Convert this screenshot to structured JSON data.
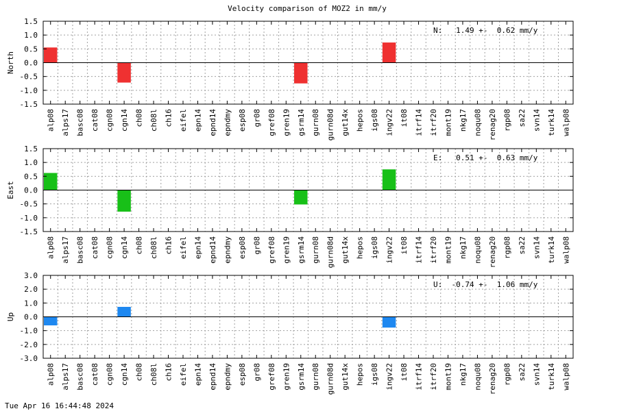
{
  "title": "Velocity comparison of MOZ2 in mm/y",
  "timestamp": "Tue Apr 16 16:44:48 2024",
  "chart_data": [
    {
      "type": "bar",
      "ylabel": "North",
      "annotation": "N:   1.49 +-  0.62 mm/y",
      "color": "#ef3131",
      "ylim": [
        -1.5,
        1.5
      ],
      "yticks": [
        1.5,
        1.0,
        0.5,
        0.0,
        -0.5,
        -1.0,
        -1.5
      ],
      "ytick_labels": [
        "1.5",
        "1.0",
        "0.5",
        "0.0",
        "-0.5",
        "-1.0",
        "-1.5"
      ],
      "categories": [
        "alp08",
        "alps17",
        "basc08",
        "cat08",
        "cgn08",
        "cgn14",
        "ch08",
        "ch08l",
        "ch16",
        "eifel",
        "epn14",
        "epnd14",
        "epndmy",
        "esp08",
        "gr08",
        "gref08",
        "gren19",
        "gsrm14",
        "gurn08",
        "gurn08d",
        "gut14x",
        "hepos",
        "igs08",
        "ingv22",
        "it08",
        "itrf14",
        "itrf20",
        "mont19",
        "nkg17",
        "noqu08",
        "renag20",
        "rgp08",
        "sa22",
        "svn14",
        "turk14",
        "walp08"
      ],
      "values": [
        0.55,
        0,
        0,
        0,
        0,
        -0.72,
        0,
        0,
        0,
        0,
        0,
        0,
        0,
        0,
        0,
        0,
        0,
        -0.75,
        0,
        0,
        0,
        0,
        0,
        0.73,
        0,
        0,
        0,
        0,
        0,
        0,
        0,
        0,
        0,
        0,
        0,
        0
      ]
    },
    {
      "type": "bar",
      "ylabel": "East",
      "annotation": "E:   0.51 +-  0.63 mm/y",
      "color": "#18c018",
      "ylim": [
        -1.5,
        1.5
      ],
      "yticks": [
        1.5,
        1.0,
        0.5,
        0.0,
        -0.5,
        -1.0,
        -1.5
      ],
      "ytick_labels": [
        "1.5",
        "1.0",
        "0.5",
        "0.0",
        "-0.5",
        "-1.0",
        "-1.5"
      ],
      "categories": [
        "alp08",
        "alps17",
        "basc08",
        "cat08",
        "cgn08",
        "cgn14",
        "ch08",
        "ch08l",
        "ch16",
        "eifel",
        "epn14",
        "epnd14",
        "epndmy",
        "esp08",
        "gr08",
        "gref08",
        "gren19",
        "gsrm14",
        "gurn08",
        "gurn08d",
        "gut14x",
        "hepos",
        "igs08",
        "ingv22",
        "it08",
        "itrf14",
        "itrf20",
        "mont19",
        "nkg17",
        "noqu08",
        "renag20",
        "rgp08",
        "sa22",
        "svn14",
        "turk14",
        "walp08"
      ],
      "values": [
        0.62,
        0,
        0,
        0,
        0,
        -0.78,
        0,
        0,
        0,
        0,
        0,
        0,
        0,
        0,
        0,
        0,
        0,
        -0.52,
        0,
        0,
        0,
        0,
        0,
        0.75,
        0,
        0,
        0,
        0,
        0,
        0,
        0,
        0,
        0,
        0,
        0,
        0
      ]
    },
    {
      "type": "bar",
      "ylabel": "Up",
      "annotation": "U:  -0.74 +-  1.06 mm/y",
      "color": "#1e88f0",
      "ylim": [
        -3.0,
        3.0
      ],
      "yticks": [
        3.0,
        2.0,
        1.0,
        0.0,
        -1.0,
        -2.0,
        -3.0
      ],
      "ytick_labels": [
        "3.0",
        "2.0",
        "1.0",
        "0.0",
        "-1.0",
        "-2.0",
        "-3.0"
      ],
      "categories": [
        "alp08",
        "alps17",
        "basc08",
        "cat08",
        "cgn08",
        "cgn14",
        "ch08",
        "ch08l",
        "ch16",
        "eifel",
        "epn14",
        "epnd14",
        "epndmy",
        "esp08",
        "gr08",
        "gref08",
        "gren19",
        "gsrm14",
        "gurn08",
        "gurn08d",
        "gut14x",
        "hepos",
        "igs08",
        "ingv22",
        "it08",
        "itrf14",
        "itrf20",
        "mont19",
        "nkg17",
        "noqu08",
        "renag20",
        "rgp08",
        "sa22",
        "svn14",
        "turk14",
        "walp08"
      ],
      "values": [
        -0.62,
        0,
        0,
        0,
        0,
        0.72,
        0,
        0,
        0,
        0,
        0,
        0,
        0,
        0,
        0,
        0,
        0,
        0,
        0,
        0,
        0,
        0,
        0,
        -0.78,
        0,
        0,
        0,
        0,
        0,
        0,
        0,
        0,
        0,
        0,
        0,
        0
      ]
    }
  ]
}
